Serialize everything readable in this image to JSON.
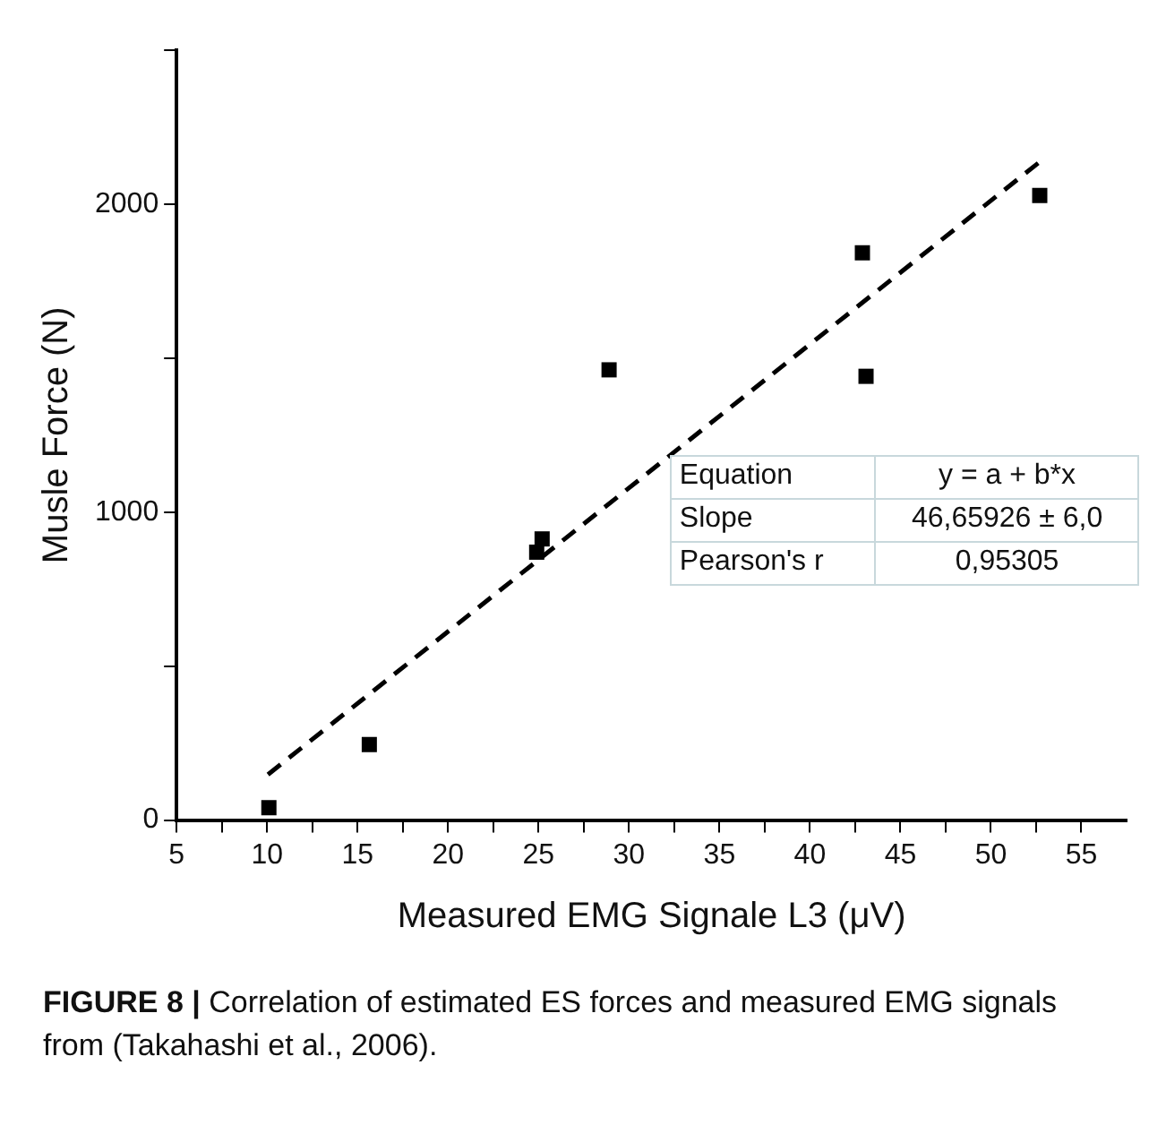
{
  "chart_data": {
    "type": "scatter",
    "xlabel": "Measured EMG Signale L3 (μV)",
    "ylabel": "Musle Force (N)",
    "xlim": [
      5,
      57.5
    ],
    "ylim": [
      0,
      2500
    ],
    "xticks": [
      5,
      {
        "value": 7.5,
        "label": null
      },
      10,
      {
        "value": 12.5,
        "label": null
      },
      15,
      {
        "value": 17.5,
        "label": null
      },
      20,
      {
        "value": 22.5,
        "label": null
      },
      25,
      {
        "value": 27.5,
        "label": null
      },
      30,
      {
        "value": 32.5,
        "label": null
      },
      35,
      {
        "value": 37.5,
        "label": null
      },
      40,
      {
        "value": 42.5,
        "label": null
      },
      45,
      {
        "value": 47.5,
        "label": null
      },
      50,
      {
        "value": 52.5,
        "label": null
      },
      55
    ],
    "yticks": [
      0,
      {
        "value": 500,
        "label": null
      },
      1000,
      {
        "value": 1500,
        "label": null
      },
      2000,
      {
        "value": 2500,
        "label": null
      }
    ],
    "grid": false,
    "legend": false,
    "marker": "square",
    "series": [
      {
        "color": "#000000",
        "x": [
          10.1,
          15.65,
          24.9,
          25.2,
          28.9,
          42.9,
          43.1,
          52.7
        ],
        "values": [
          40,
          245,
          870,
          913,
          1462,
          1842,
          1441,
          2028
        ]
      },
      {
        "type": "line",
        "color": "#000000",
        "line_style": "dashed",
        "marker": "none",
        "x": [
          10.05,
          52.8
        ],
        "values": [
          148,
          2142
        ]
      }
    ],
    "annotations": [
      "Equation",
      "y = a + b*x",
      "Slope",
      "46,65926 ± 6,0",
      "Pearson's r",
      "0,95305",
      "FIGURE 8 |",
      "Correlation of estimated ES forces and measured EMG signals from (Takahashi et al., 2006)."
    ]
  }
}
